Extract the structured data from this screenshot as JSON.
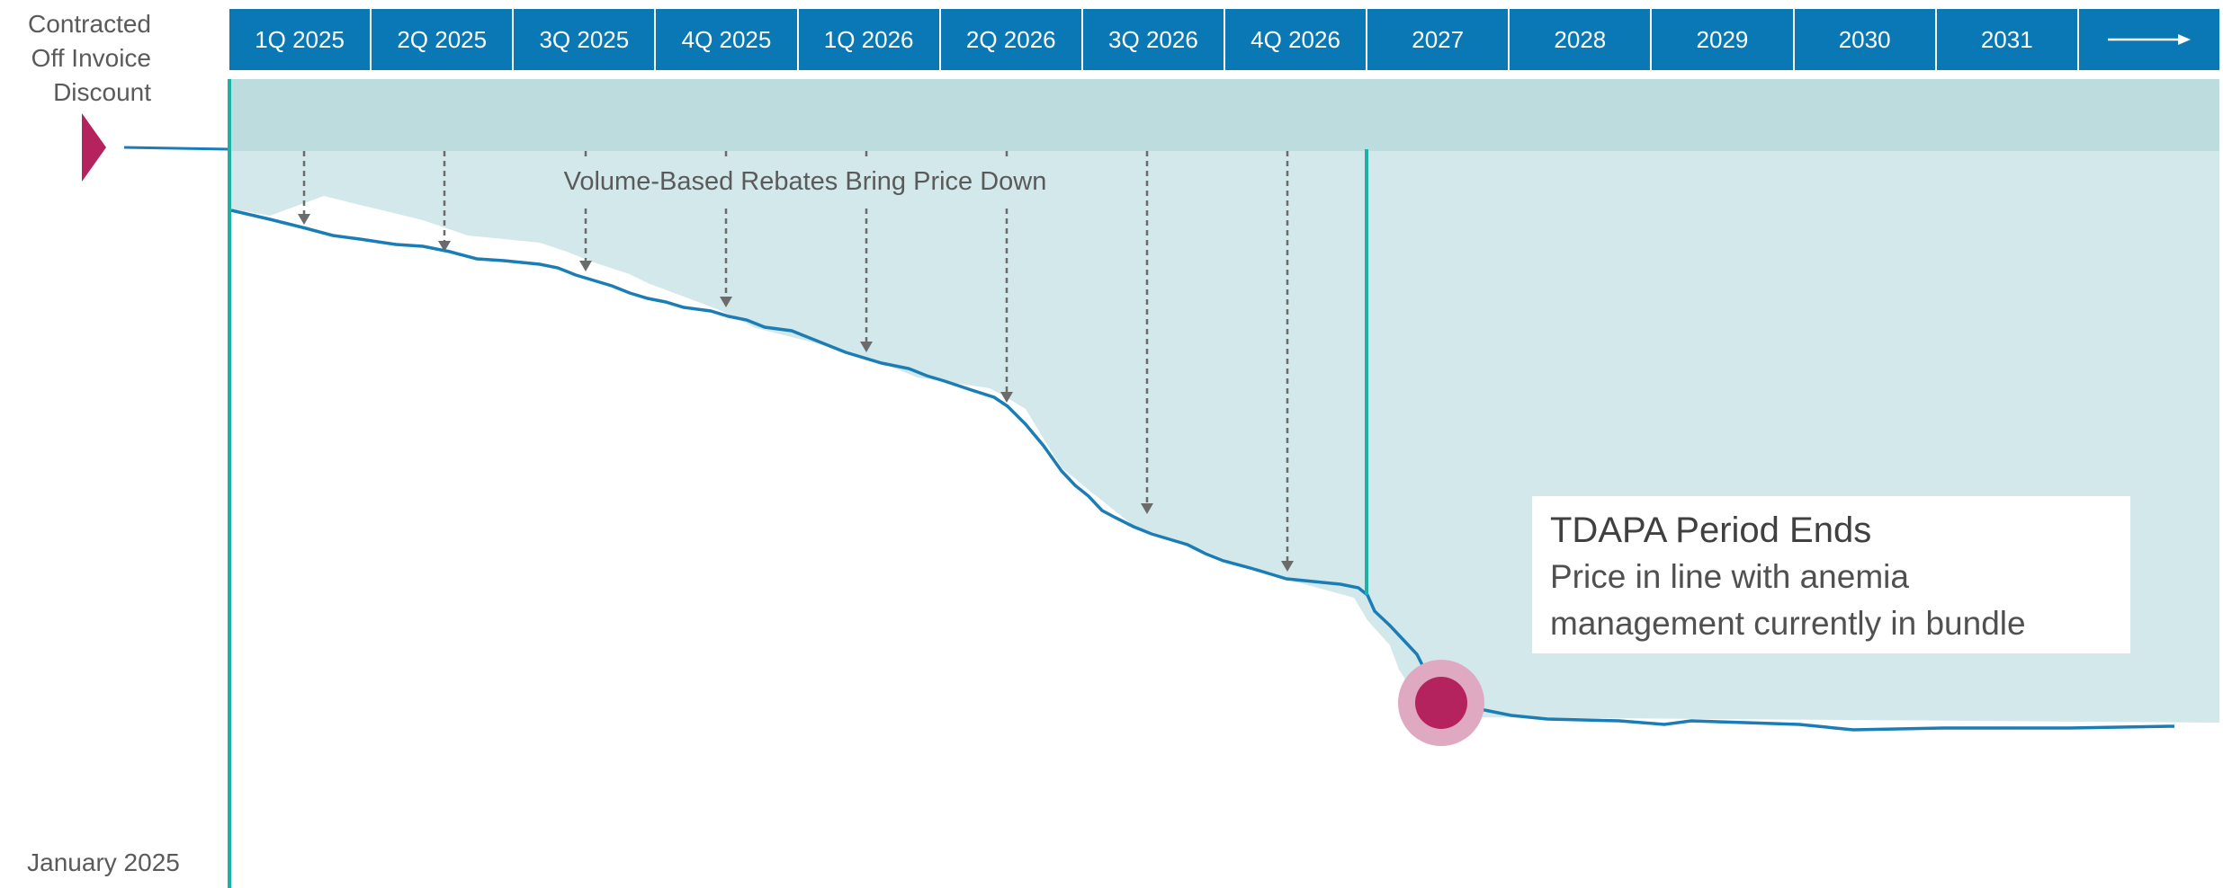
{
  "timeline": {
    "periods": [
      "1Q 2025",
      "2Q 2025",
      "3Q 2025",
      "4Q 2025",
      "1Q 2026",
      "2Q 2026",
      "3Q 2026",
      "4Q 2026",
      "2027",
      "2028",
      "2029",
      "2030",
      "2031"
    ],
    "continuation_icon": "right-arrow-icon"
  },
  "labels": {
    "left_marker": "Contracted Off Invoice Discount",
    "start_date": "January 2025",
    "rebates": "Volume-Based Rebates Bring Price Down"
  },
  "callout": {
    "title": "TDAPA Period Ends",
    "text": "Price in line with anemia management currently in bundle"
  },
  "colors": {
    "header_blue": "#0A78B4",
    "line_blue": "#1A7DB5",
    "band": "#BCDCDE",
    "area": "#D3E8EA",
    "teal": "#1BB3A7",
    "marker": "#B5235E",
    "marker_halo": "#DFA9C1",
    "arrow_gray": "#6B6B6B"
  }
}
